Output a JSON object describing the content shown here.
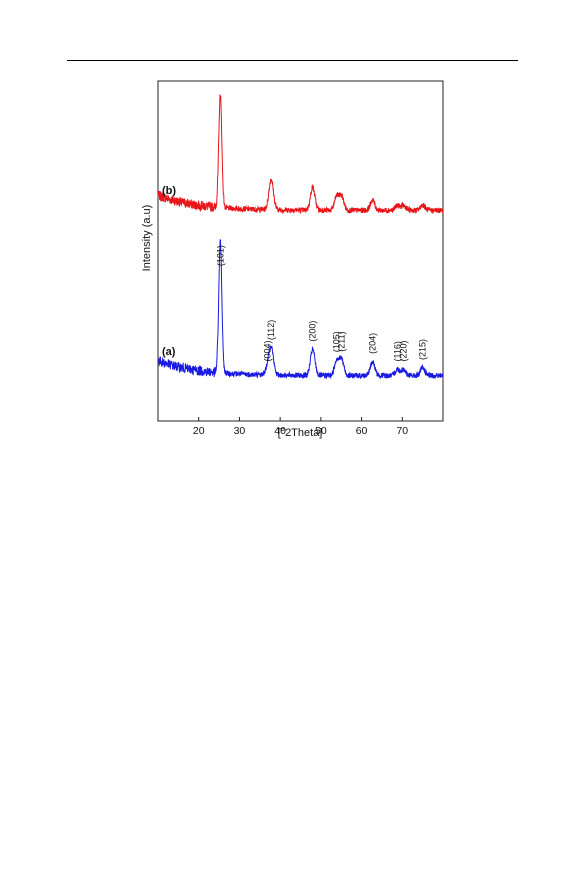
{
  "chart_data": {
    "type": "line",
    "xlabel": "[°2Theta]",
    "ylabel": "Intensity (a.u)",
    "xlim": [
      10,
      80
    ],
    "ylim": [
      0,
      100
    ],
    "x_ticks": [
      20,
      30,
      40,
      50,
      60,
      70
    ],
    "grid": false,
    "legend": "none",
    "series": [
      {
        "name": "(b)",
        "color": "#e8161b",
        "baseline": 60,
        "peaks": [
          [
            25.3,
            37
          ],
          [
            37.8,
            10
          ],
          [
            48.0,
            7.5
          ],
          [
            53.9,
            4.5
          ],
          [
            55.1,
            4.5
          ],
          [
            62.7,
            3.3
          ],
          [
            68.8,
            1.6
          ],
          [
            70.3,
            1.6
          ],
          [
            75.0,
            1.8
          ]
        ],
        "keypoints": {
          "x": [
            10,
            25.3,
            37.8,
            48.0,
            55.1,
            62.7,
            80
          ],
          "y": [
            61,
            97,
            70,
            67,
            64,
            63,
            60
          ]
        }
      },
      {
        "name": "(a)",
        "color": "#1a1ae0",
        "baseline": 6,
        "peaks": [
          [
            25.3,
            43
          ],
          [
            36.9,
            2
          ],
          [
            37.8,
            9
          ],
          [
            48.0,
            8.5
          ],
          [
            53.9,
            5
          ],
          [
            55.1,
            5.2
          ],
          [
            62.7,
            4.5
          ],
          [
            68.8,
            2
          ],
          [
            70.3,
            2
          ],
          [
            75.0,
            2.5
          ]
        ],
        "peak_labels": [
          {
            "x": 25.3,
            "text": "(101)"
          },
          {
            "x": 36.9,
            "text": "(004)"
          },
          {
            "x": 37.8,
            "text": "(112)"
          },
          {
            "x": 48.0,
            "text": "(200)"
          },
          {
            "x": 53.9,
            "text": "(105)"
          },
          {
            "x": 55.1,
            "text": "(211)"
          },
          {
            "x": 62.7,
            "text": "(204)"
          },
          {
            "x": 68.8,
            "text": "(116)"
          },
          {
            "x": 70.3,
            "text": "(220)"
          },
          {
            "x": 75.0,
            "text": "(215)"
          }
        ],
        "keypoints": {
          "x": [
            10,
            25.3,
            37.8,
            48.0,
            55.1,
            62.7,
            75.0,
            80
          ],
          "y": [
            13,
            52,
            16,
            15,
            11,
            10,
            8.5,
            6
          ]
        }
      }
    ]
  }
}
